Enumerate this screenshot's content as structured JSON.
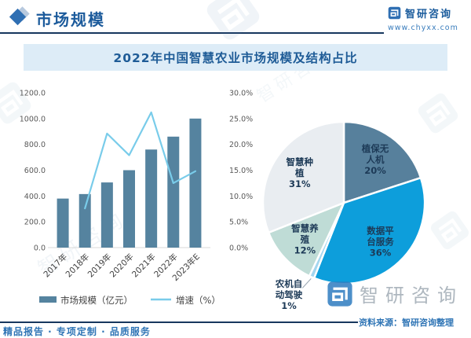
{
  "header": {
    "section_title": "市场规模",
    "brand_name": "智研咨询",
    "brand_url": "www.chyxx.com"
  },
  "chart_title": "2022年中国智慧农业市场规模及结构占比",
  "chart_data": [
    {
      "type": "bar",
      "title": "市场规模及增速",
      "categories": [
        "2017年",
        "2018年",
        "2019年",
        "2020年",
        "2021年",
        "2022年",
        "2023年E"
      ],
      "series": [
        {
          "name": "市场规模（亿元）",
          "type": "bar",
          "axis": "left",
          "color": "#55839f",
          "values": [
            380,
            415,
            505,
            600,
            760,
            860,
            1000
          ]
        },
        {
          "name": "增速（%）",
          "type": "line",
          "axis": "right",
          "color": "#79ccea",
          "values": [
            null,
            7.6,
            22.1,
            17.9,
            26.2,
            12.5,
            14.8
          ]
        }
      ],
      "left_axis": {
        "min": 0,
        "max": 1200,
        "step": 200,
        "ticks": [
          "0.0",
          "200.0",
          "400.0",
          "600.0",
          "800.0",
          "1000.0",
          "1200.0"
        ]
      },
      "right_axis": {
        "min": 0,
        "max": 30,
        "step": 5,
        "ticks": [
          "0.0%",
          "5.0%",
          "10.0%",
          "15.0%",
          "20.0%",
          "25.0%",
          "30.0%"
        ]
      },
      "grid": false,
      "legend_position": "bottom"
    },
    {
      "type": "pie",
      "start_angle_deg": 0,
      "direction": "clockwise",
      "slices": [
        {
          "label": "植保无人机",
          "label_lines": [
            "植保无",
            "人机"
          ],
          "pct": 20,
          "color": "#57809c"
        },
        {
          "label": "数据平台服务",
          "label_lines": [
            "数据平",
            "台服务"
          ],
          "pct": 36,
          "color": "#0d9edb"
        },
        {
          "label": "农机自动驾驶",
          "label_lines": [
            "农机自",
            "动驾驶"
          ],
          "pct": 1,
          "color": "#a3d6ef",
          "label_outside": true
        },
        {
          "label": "智慧养殖",
          "label_lines": [
            "智慧养",
            "殖"
          ],
          "pct": 12,
          "color": "#bfdcd6"
        },
        {
          "label": "智慧种植",
          "label_lines": [
            "智慧种",
            "植"
          ],
          "pct": 31,
          "color": "#e9edf1"
        }
      ]
    }
  ],
  "footer": {
    "tagline": "精品报告 · 专项定制 · 品质服务",
    "source": "资料来源：智研咨询整理",
    "watermark_brand": "智研咨询"
  },
  "colors": {
    "header_rule": "#17375e",
    "brand_blue": "#2e74b5",
    "title_bar_bg": "#ddecf7",
    "title_text": "#1f5c97",
    "bar": "#55839f",
    "line": "#79ccea",
    "axis_text": "#595959",
    "category_text": "#404040",
    "pie_label_text": "#1d3a57"
  }
}
